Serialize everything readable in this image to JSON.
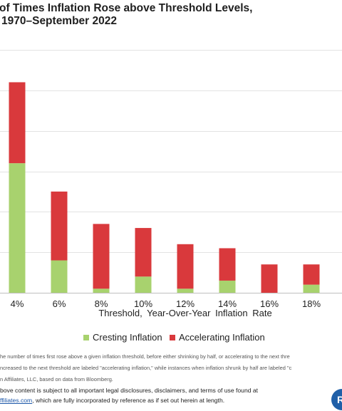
{
  "chart_data": {
    "type": "bar",
    "stacked": true,
    "title": "of Times Inflation Rose above Threshold Levels,",
    "subtitle": "1970–September 2022",
    "xlabel": "Threshold, Year-Over-Year Inflation Rate",
    "ylabel": "",
    "categories": [
      "4%",
      "6%",
      "8%",
      "10%",
      "12%",
      "14%",
      "16%",
      "18%"
    ],
    "series": [
      {
        "name": "Cresting Inflation",
        "color": "#a8d26e",
        "values": [
          32,
          8,
          1,
          4,
          1,
          3,
          0,
          2
        ]
      },
      {
        "name": "Accelerating Inflation",
        "color": "#d9393c",
        "values": [
          20,
          17,
          16,
          12,
          11,
          8,
          7,
          5
        ]
      }
    ],
    "ylim": [
      0,
      60
    ],
    "ytick_step": 10,
    "grid": true,
    "legend_position": "bottom"
  },
  "notes": {
    "line1": "he number of times first rose above a given inflation threshold, before either shrinking by half, or accelerating to the next thre",
    "line2": "ncreased to the next threshold are labeled \"accelerating inflation,\" while instances when inflation shrunk by half are labeled \"c",
    "source": "n Affiliates, LLC, based on data from Bloomberg."
  },
  "disclaimer": {
    "line1": "bove content is subject to all important legal disclosures, disclaimers, and terms of use found at",
    "link": "ffiliates.com",
    "line2_rest": ", which are fully incorporated by reference as if set out herein at length."
  },
  "logo": {
    "text": "R"
  }
}
